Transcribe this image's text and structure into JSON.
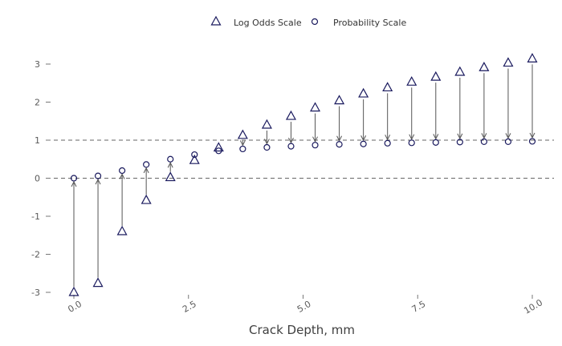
{
  "chart_data": {
    "type": "scatter",
    "xlabel": "Crack Depth, mm",
    "ylabel": "",
    "xlim": [
      0,
      10
    ],
    "ylim": [
      -3,
      3
    ],
    "xticks": [
      "0.0",
      "2.5",
      "5.0",
      "7.5",
      "10.0"
    ],
    "yticks": [
      "3",
      "2",
      "1",
      "0",
      "-1",
      "-2",
      "-3"
    ],
    "reference_lines": [
      0,
      1
    ],
    "legend": {
      "placement": "top-center",
      "entries": [
        "Log Odds Scale",
        "Probability Scale"
      ]
    },
    "colors": {
      "markers": "#1a1a5e",
      "arrows": "#555555",
      "reference": "#666666"
    },
    "x": [
      0.0,
      0.5263,
      1.0526,
      1.5789,
      2.1053,
      2.6316,
      3.1579,
      3.6842,
      4.2105,
      4.7368,
      5.2632,
      5.7895,
      6.3158,
      6.8421,
      7.3684,
      7.8947,
      8.4211,
      8.9474,
      9.4737,
      10.0
    ],
    "series": [
      {
        "name": "Log Odds Scale",
        "marker": "triangle",
        "values": [
          -3.0,
          -2.76,
          -1.4,
          -0.58,
          0.02,
          0.47,
          0.8,
          1.13,
          1.4,
          1.63,
          1.85,
          2.04,
          2.22,
          2.38,
          2.53,
          2.66,
          2.79,
          2.91,
          3.03,
          3.14
        ]
      },
      {
        "name": "Probability Scale",
        "marker": "circle",
        "values": [
          0.0,
          0.06,
          0.2,
          0.36,
          0.5,
          0.62,
          0.72,
          0.77,
          0.81,
          0.84,
          0.87,
          0.89,
          0.9,
          0.92,
          0.93,
          0.94,
          0.95,
          0.96,
          0.96,
          0.97
        ]
      }
    ]
  }
}
